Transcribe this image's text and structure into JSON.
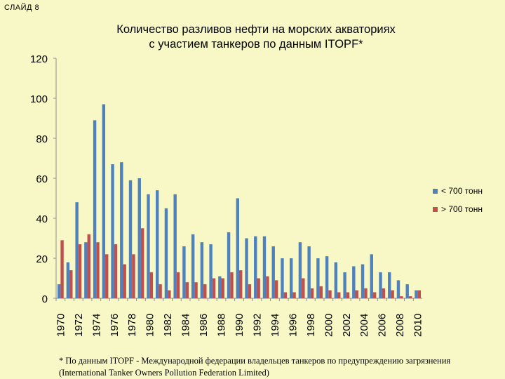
{
  "slide_label": "СЛАЙД 8",
  "footnote": {
    "line1": "* По данным ITOPF - Международной федерации владельцев танкеров по предупреждению загрязнения",
    "line2": "(International Tanker Owners Pollution Federation Limited)"
  },
  "colors": {
    "background": "#f7f8c6",
    "series_small": "#4f81bd",
    "series_large": "#c0504d",
    "axis": "#8e8e8e"
  },
  "chart_data": {
    "type": "bar",
    "title_line1": "Количество разливов нефти на морских акваториях",
    "title_line2": "с участием танкеров по данным ITOPF*",
    "categories": [
      1970,
      1971,
      1972,
      1973,
      1974,
      1975,
      1976,
      1977,
      1978,
      1979,
      1980,
      1981,
      1982,
      1983,
      1984,
      1985,
      1986,
      1987,
      1988,
      1989,
      1990,
      1991,
      1992,
      1993,
      1994,
      1995,
      1996,
      1997,
      1998,
      1999,
      2000,
      2001,
      2002,
      2003,
      2004,
      2005,
      2006,
      2007,
      2008,
      2009,
      2010
    ],
    "tick_labels": [
      "1970",
      "1972",
      "1974",
      "1976",
      "1978",
      "1980",
      "1982",
      "1984",
      "1986",
      "1988",
      "1990",
      "1992",
      "1994",
      "1996",
      "1998",
      "2000",
      "2002",
      "2004",
      "2006",
      "2008",
      "2010"
    ],
    "ylim": [
      0,
      120
    ],
    "yticks": [
      0,
      20,
      40,
      60,
      80,
      100,
      120
    ],
    "grid": false,
    "legend_position": "right",
    "series": [
      {
        "name": "< 700 тонн",
        "color": "#4f81bd",
        "values": [
          7,
          18,
          48,
          28,
          89,
          97,
          67,
          68,
          59,
          60,
          52,
          54,
          45,
          52,
          26,
          32,
          28,
          27,
          11,
          33,
          50,
          30,
          31,
          31,
          26,
          20,
          20,
          28,
          26,
          20,
          21,
          18,
          13,
          16,
          17,
          22,
          13,
          13,
          9,
          7,
          4
        ]
      },
      {
        "name": "> 700 тонн",
        "color": "#c0504d",
        "values": [
          29,
          14,
          27,
          32,
          28,
          22,
          27,
          17,
          22,
          35,
          13,
          7,
          4,
          13,
          8,
          8,
          7,
          10,
          10,
          13,
          14,
          7,
          10,
          11,
          9,
          3,
          3,
          10,
          5,
          6,
          4,
          3,
          3,
          4,
          5,
          3,
          5,
          4,
          1,
          1,
          4
        ]
      }
    ]
  }
}
